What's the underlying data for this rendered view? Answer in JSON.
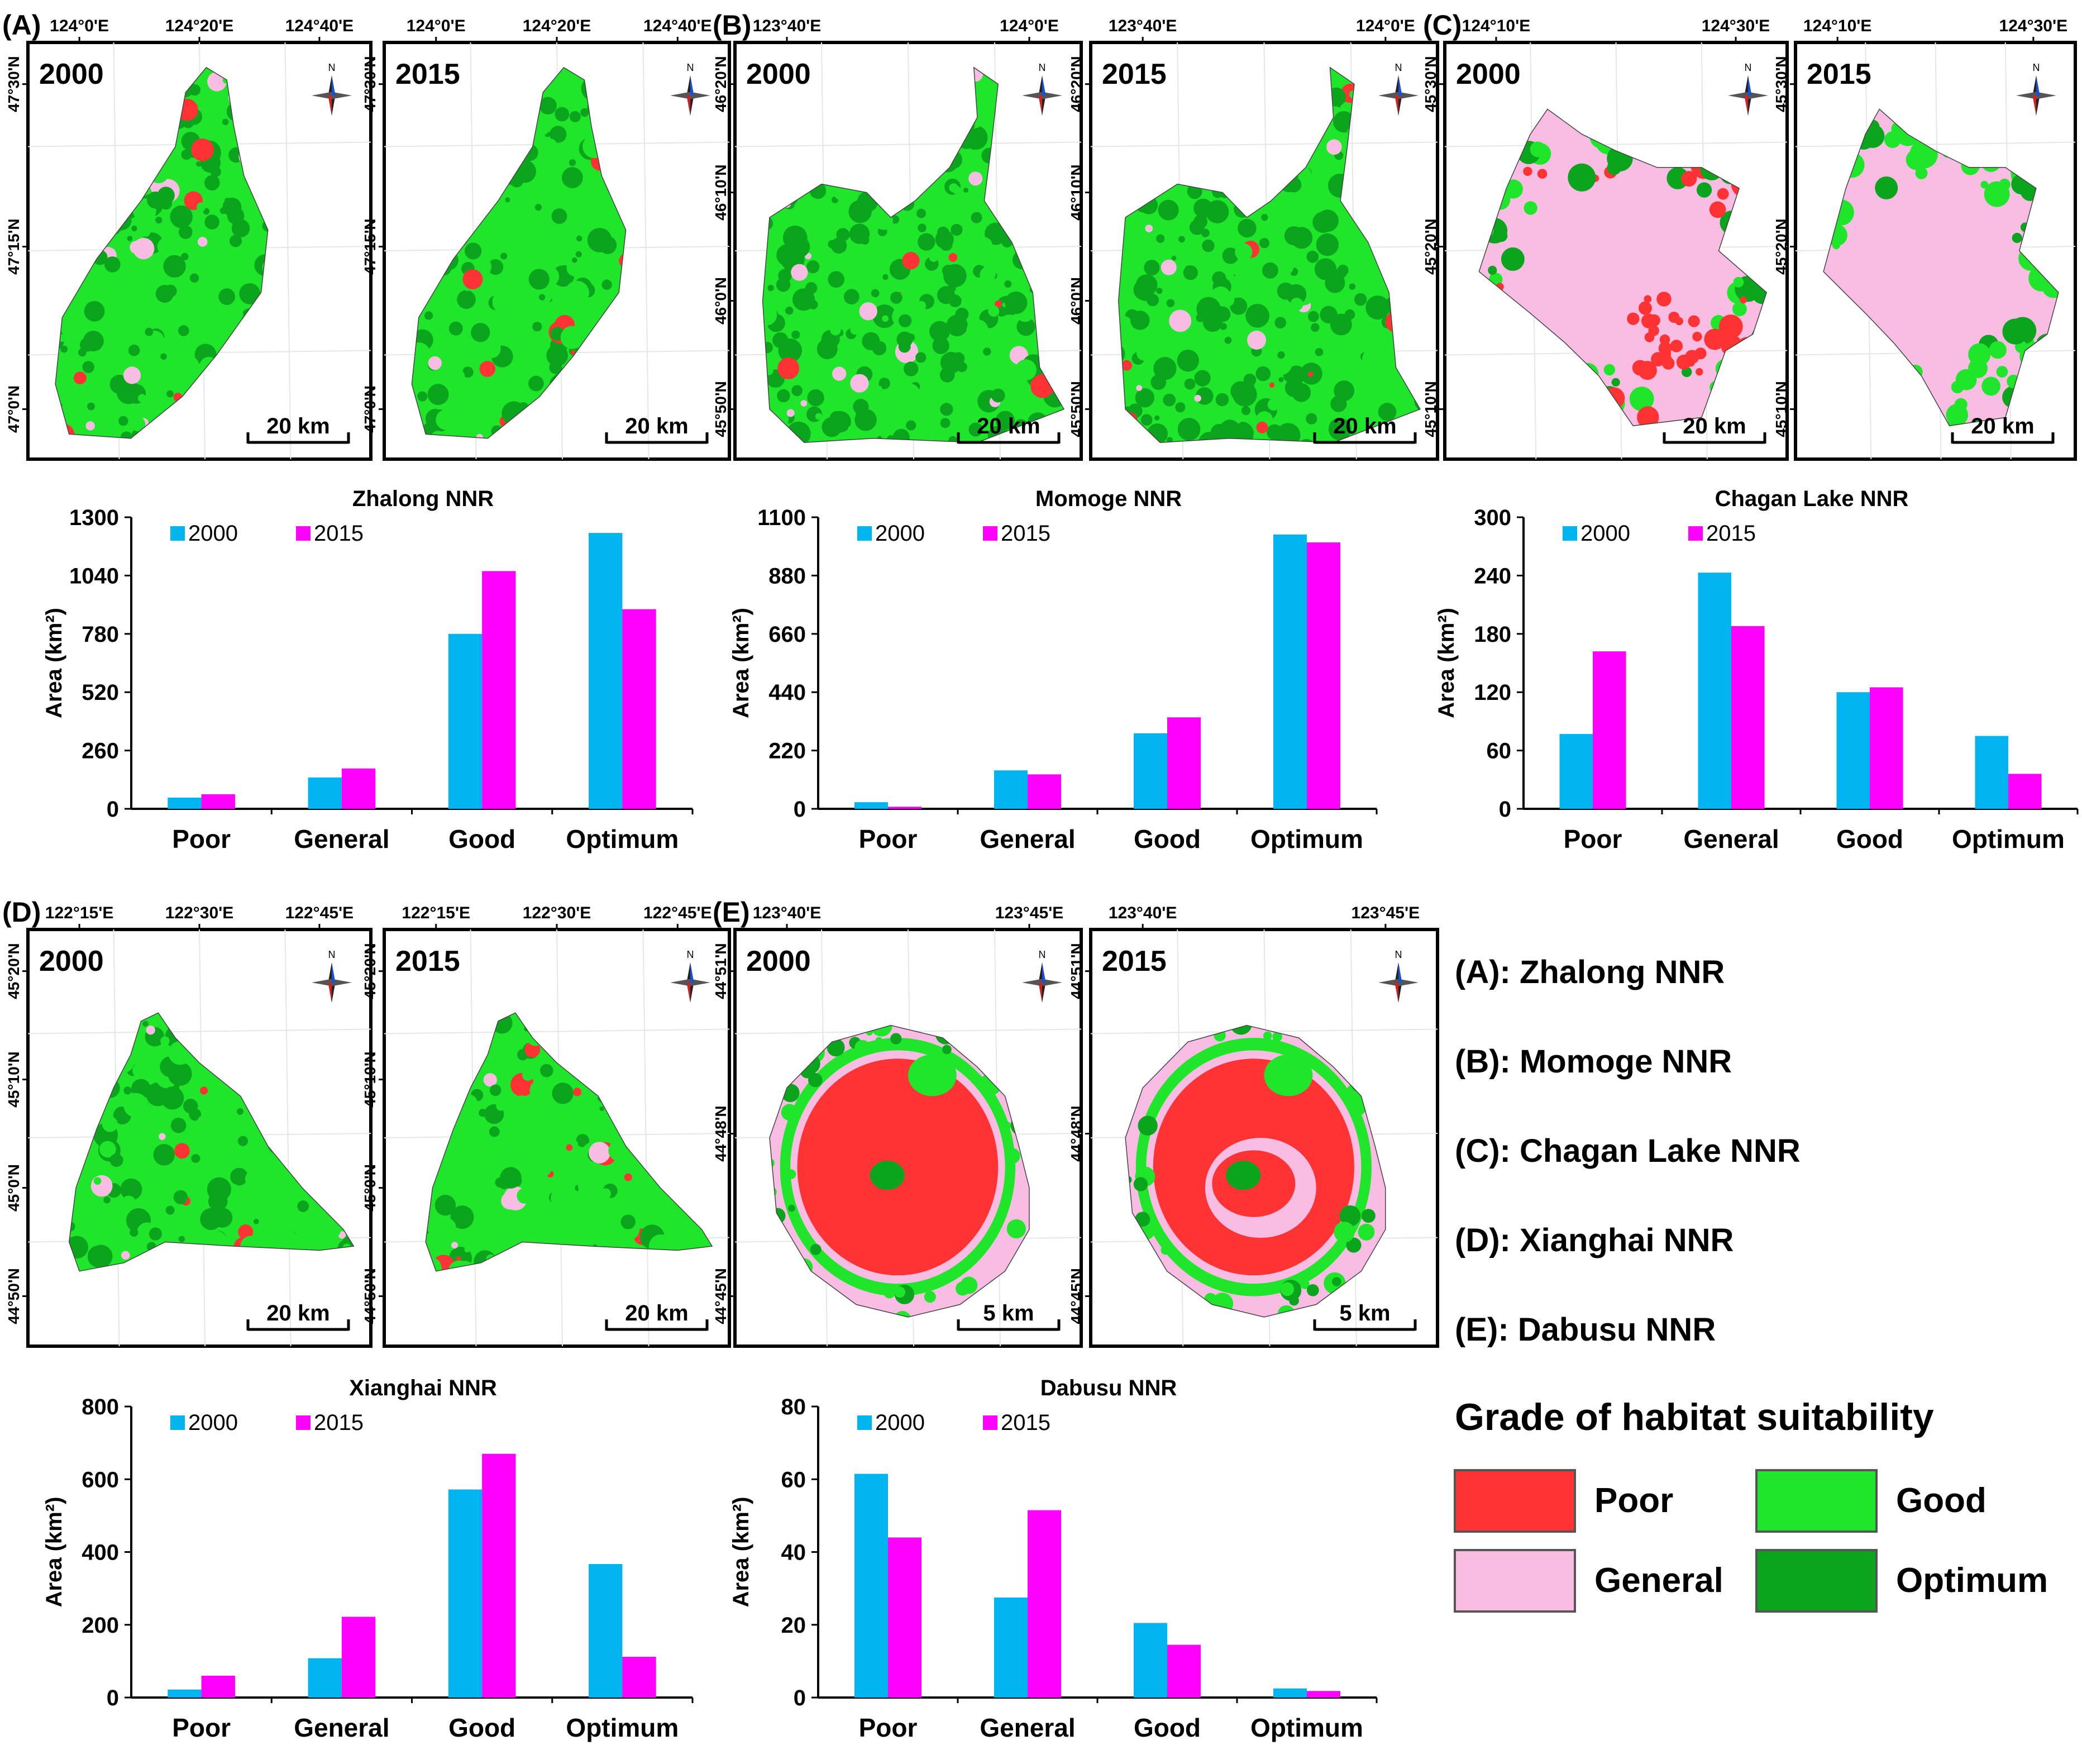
{
  "colors": {
    "poor": "#ff3333",
    "general": "#f9bde3",
    "good": "#1fe62b",
    "optimum": "#0aa51c",
    "bar2000": "#00b4f0",
    "bar2015": "#ff00ff"
  },
  "panels": [
    {
      "letter": "(A)",
      "years": [
        "2000",
        "2015"
      ],
      "lon_ticks": [
        "124°0'E",
        "124°20'E",
        "124°40'E"
      ],
      "lat_ticks": [
        "47°30'N",
        "47°15'N",
        "47°0'N"
      ],
      "scale_label": "20 km"
    },
    {
      "letter": "(B)",
      "years": [
        "2000",
        "2015"
      ],
      "lon_ticks": [
        "123°40'E",
        "124°0'E"
      ],
      "lat_ticks": [
        "46°20'N",
        "46°10'N",
        "46°0'N",
        "45°50'N"
      ],
      "scale_label": "20 km"
    },
    {
      "letter": "(C)",
      "years": [
        "2000",
        "2015"
      ],
      "lon_ticks": [
        "124°10'E",
        "124°30'E"
      ],
      "lat_ticks": [
        "45°30'N",
        "45°20'N",
        "45°10'N"
      ],
      "scale_label": "20 km"
    },
    {
      "letter": "(D)",
      "years": [
        "2000",
        "2015"
      ],
      "lon_ticks": [
        "122°15'E",
        "122°30'E",
        "122°45'E"
      ],
      "lat_ticks": [
        "45°20'N",
        "45°10'N",
        "45°0'N",
        "44°50'N"
      ],
      "scale_label": "20 km"
    },
    {
      "letter": "(E)",
      "years": [
        "2000",
        "2015"
      ],
      "lon_ticks": [
        "123°40'E",
        "123°45'E"
      ],
      "lat_ticks": [
        "44°51'N",
        "44°48'N",
        "44°45'N"
      ],
      "scale_label": "5 km"
    }
  ],
  "north_label": "N",
  "legend_names": [
    "(A): Zhalong NNR",
    "(B): Momoge NNR",
    "(C): Chagan Lake NNR",
    "(D): Xianghai NNR",
    "(E): Dabusu NNR"
  ],
  "legend_title": "Grade of habitat suitability",
  "legend_grades": [
    "Poor",
    "General",
    "Good",
    "Optimum"
  ],
  "chart_data": [
    {
      "type": "bar",
      "title": "Zhalong NNR",
      "categories": [
        "Poor",
        "General",
        "Good",
        "Optimum"
      ],
      "series": [
        {
          "name": "2000",
          "values": [
            50,
            140,
            780,
            1230
          ]
        },
        {
          "name": "2015",
          "values": [
            65,
            180,
            1060,
            890
          ]
        }
      ],
      "ylabel": "Area (km²)",
      "ylim": [
        0,
        1300
      ],
      "yticks": [
        "0",
        "260",
        "520",
        "780",
        "1040",
        "1300"
      ]
    },
    {
      "type": "bar",
      "title": "Momoge NNR",
      "categories": [
        "Poor",
        "General",
        "Good",
        "Optimum"
      ],
      "series": [
        {
          "name": "2000",
          "values": [
            25,
            145,
            285,
            1035
          ]
        },
        {
          "name": "2015",
          "values": [
            8,
            130,
            345,
            1005
          ]
        }
      ],
      "ylabel": "Area (km²)",
      "ylim": [
        0,
        1100
      ],
      "yticks": [
        "0",
        "220",
        "440",
        "660",
        "880",
        "1100"
      ]
    },
    {
      "type": "bar",
      "title": "Chagan Lake NNR",
      "categories": [
        "Poor",
        "General",
        "Good",
        "Optimum"
      ],
      "series": [
        {
          "name": "2000",
          "values": [
            77,
            243,
            120,
            75
          ]
        },
        {
          "name": "2015",
          "values": [
            162,
            188,
            125,
            36
          ]
        }
      ],
      "ylabel": "Area (km²)",
      "ylim": [
        0,
        300
      ],
      "yticks": [
        "0",
        "60",
        "120",
        "180",
        "240",
        "300"
      ]
    },
    {
      "type": "bar",
      "title": "Xianghai NNR",
      "categories": [
        "Poor",
        "General",
        "Good",
        "Optimum"
      ],
      "series": [
        {
          "name": "2000",
          "values": [
            22,
            108,
            572,
            367
          ]
        },
        {
          "name": "2015",
          "values": [
            60,
            222,
            670,
            112
          ]
        }
      ],
      "ylabel": "Area (km²)",
      "ylim": [
        0,
        800
      ],
      "yticks": [
        "0",
        "200",
        "400",
        "600",
        "800"
      ]
    },
    {
      "type": "bar",
      "title": "Dabusu NNR",
      "categories": [
        "Poor",
        "General",
        "Good",
        "Optimum"
      ],
      "series": [
        {
          "name": "2000",
          "values": [
            61.5,
            27.5,
            20.5,
            2.5
          ]
        },
        {
          "name": "2015",
          "values": [
            44,
            51.5,
            14.5,
            1.8
          ]
        }
      ],
      "ylabel": "Area (km²)",
      "ylim": [
        0,
        80
      ],
      "yticks": [
        "0",
        "20",
        "40",
        "60",
        "80"
      ]
    }
  ]
}
